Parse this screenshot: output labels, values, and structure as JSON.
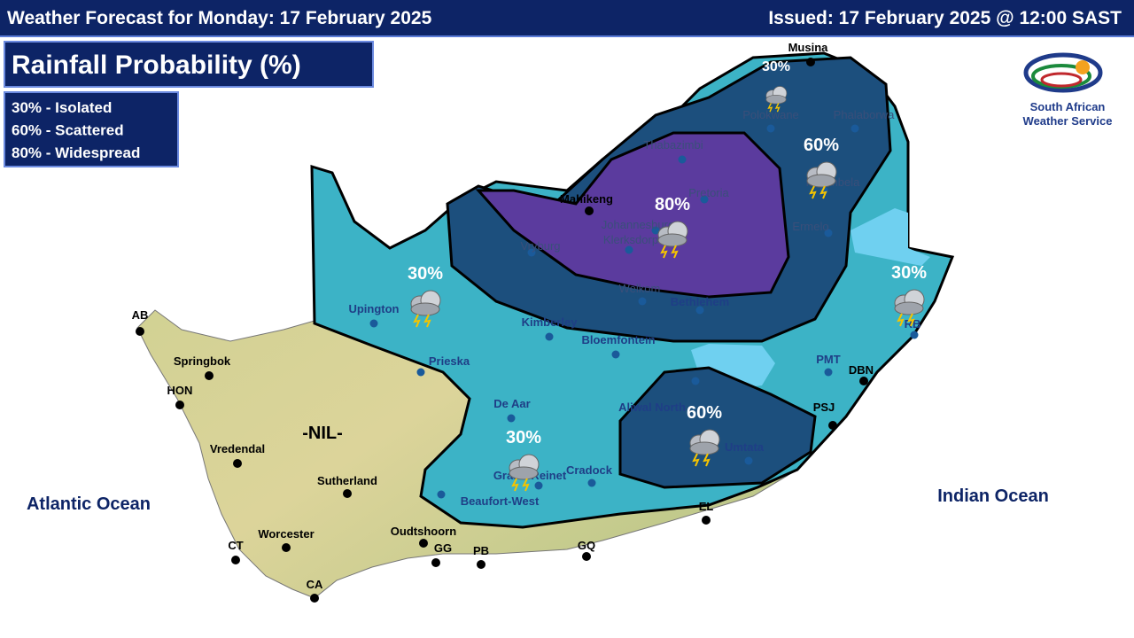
{
  "header": {
    "title": "Weather Forecast for Monday: 17 February 2025",
    "issued": "Issued: 17 February 2025 @ 12:00 SAST"
  },
  "panel": {
    "title": "Rainfall Probability (%)",
    "legend": [
      "30% - Isolated",
      "60% - Scattered",
      "80% - Widespread"
    ]
  },
  "logo": {
    "lines": [
      "South African",
      "Weather Service"
    ]
  },
  "oceans": [
    "Atlantic Ocean",
    "Indian Ocean"
  ],
  "zones": [
    "30%",
    "60%",
    "80%",
    "30%",
    "30%",
    "60%",
    "30%",
    "-NIL-"
  ],
  "towns": [
    "Musina",
    "Polokwane",
    "Phalaborwa",
    "Thabazimbi",
    "Mbombela",
    "Mahikeng",
    "Pretoria",
    "Johannesburg",
    "Klerksdorp",
    "Vryburg",
    "Ermelo",
    "Welkom",
    "Bethlehem",
    "Upington",
    "Kimberley",
    "Bloemfontein",
    "Prieska",
    "AB",
    "Springbok",
    "HON",
    "Vredendal",
    "Aliwal North",
    "De Aar",
    "PMT",
    "DBN",
    "PSJ",
    "Umtata",
    "Graaff-Reinet",
    "Cradock",
    "Beaufort-West",
    "Sutherland",
    "EL",
    "Worcester",
    "Oudtshoorn",
    "GG",
    "PB",
    "GQ",
    "CT",
    "CA",
    "RB"
  ]
}
